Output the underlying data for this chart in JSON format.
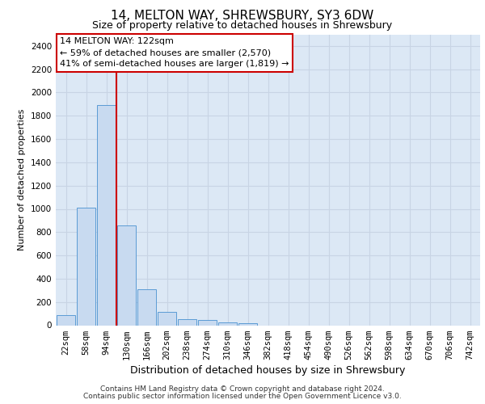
{
  "title": "14, MELTON WAY, SHREWSBURY, SY3 6DW",
  "subtitle": "Size of property relative to detached houses in Shrewsbury",
  "xlabel": "Distribution of detached houses by size in Shrewsbury",
  "ylabel": "Number of detached properties",
  "bin_labels": [
    "22sqm",
    "58sqm",
    "94sqm",
    "130sqm",
    "166sqm",
    "202sqm",
    "238sqm",
    "274sqm",
    "310sqm",
    "346sqm",
    "382sqm",
    "418sqm",
    "454sqm",
    "490sqm",
    "526sqm",
    "562sqm",
    "598sqm",
    "634sqm",
    "670sqm",
    "706sqm",
    "742sqm"
  ],
  "bar_values": [
    90,
    1010,
    1890,
    860,
    310,
    115,
    55,
    45,
    25,
    15,
    0,
    0,
    0,
    0,
    0,
    0,
    0,
    0,
    0,
    0,
    0
  ],
  "bar_color": "#c8daf0",
  "bar_edge_color": "#5b9bd5",
  "vline_color": "#cc0000",
  "vline_pos": 2.5,
  "annotation_line1": "14 MELTON WAY: 122sqm",
  "annotation_line2": "← 59% of detached houses are smaller (2,570)",
  "annotation_line3": "41% of semi-detached houses are larger (1,819) →",
  "ylim": [
    0,
    2500
  ],
  "yticks": [
    0,
    200,
    400,
    600,
    800,
    1000,
    1200,
    1400,
    1600,
    1800,
    2000,
    2200,
    2400
  ],
  "footnote1": "Contains HM Land Registry data © Crown copyright and database right 2024.",
  "footnote2": "Contains public sector information licensed under the Open Government Licence v3.0.",
  "grid_color": "#c8d4e4",
  "background_color": "#dce8f5",
  "title_fontsize": 11,
  "subtitle_fontsize": 9,
  "xlabel_fontsize": 9,
  "ylabel_fontsize": 8,
  "tick_fontsize": 7.5,
  "annot_fontsize": 8,
  "footnote_fontsize": 6.5
}
